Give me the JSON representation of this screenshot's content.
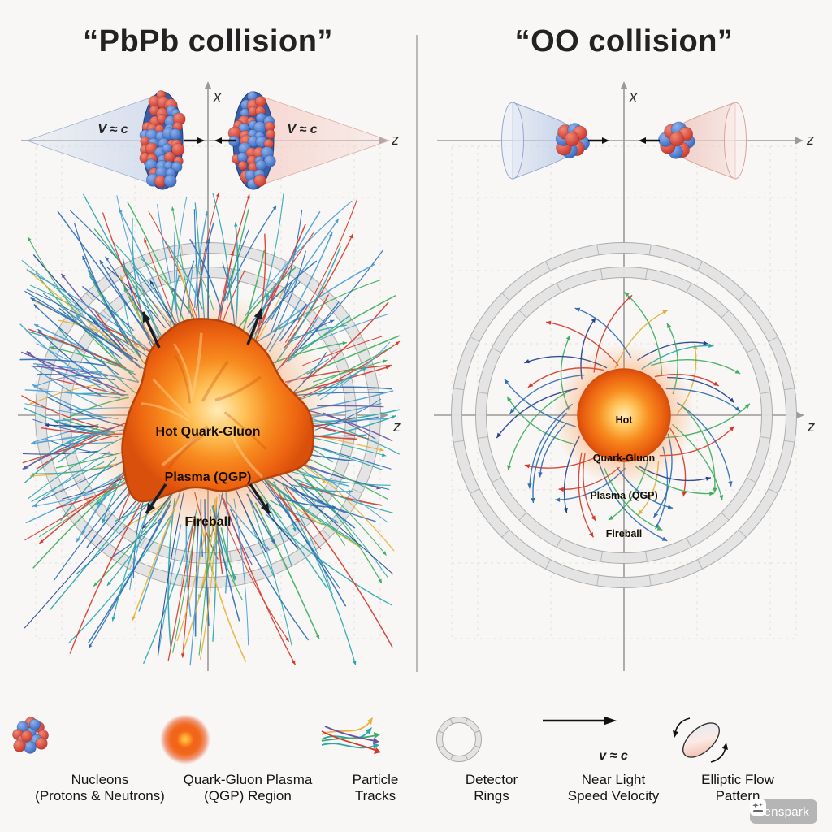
{
  "left_panel": {
    "title": "“PbPb collision”",
    "beam_label_left": "V ≈ c",
    "beam_label_right": "V ≈ c",
    "axis": {
      "x": "x",
      "z_top": "z",
      "z_main": "z"
    },
    "fireball_lines": [
      "Hot Quark-Gluon",
      "Plasma (QGP)",
      "Fireball"
    ]
  },
  "right_panel": {
    "title": "“OO collision”",
    "axis": {
      "x": "x",
      "z_top": "z",
      "z_main": "z"
    },
    "fireball_lines": [
      "Hot",
      "Quark-Gluon",
      "Plasma (QGP)",
      "Fireball"
    ]
  },
  "legend": {
    "items": [
      {
        "icon": "nucleons-icon",
        "lines": [
          "Nucleons",
          "(Protons & Neutrons)"
        ]
      },
      {
        "icon": "qgp-icon",
        "lines": [
          "Quark-Gluon Plasma",
          "(QGP) Region"
        ]
      },
      {
        "icon": "particle-tracks-icon",
        "lines": [
          "Particle",
          "Tracks"
        ]
      },
      {
        "icon": "detector-rings-icon",
        "lines": [
          "Detector",
          "Rings"
        ]
      },
      {
        "icon": "velocity-icon",
        "velocity_label": "v ≈ c",
        "lines": [
          "Near Light",
          "Speed Velocity"
        ]
      },
      {
        "icon": "elliptic-flow-icon",
        "lines": [
          "Elliptic Flow",
          "Pattern"
        ]
      }
    ]
  },
  "watermark": {
    "text": "Genspark"
  },
  "art": {
    "background": "#f8f7f5",
    "divider_color": "#b8b8b8",
    "axis_color": "#9a9a9a",
    "grid_color": "#e2dfda",
    "black_arrow_color": "#1b1b24",
    "ring_fill": "#e4e4e4",
    "ring_edge": "#a9a9a9",
    "cone_blue": "#cdd8ec",
    "cone_blue_edge": "#93a9cf",
    "cone_red": "#f5cfc8",
    "cone_red_edge": "#d9a39b",
    "sphere_blue": [
      "#8fb2ec",
      "#2a5cb8"
    ],
    "sphere_red": [
      "#f08a76",
      "#c5271d"
    ],
    "fireball_core": [
      "#ffecb8",
      "#ffc258",
      "#f78c1f",
      "#ee6611",
      "#d94f0c"
    ],
    "fireball_rim": "#b8430a",
    "left_tracks": {
      "count": 320,
      "seed": 20250,
      "arrow_prob": 0.3,
      "palette": [
        "#2e6fb5",
        "#4a9fd4",
        "#2aa7ac",
        "#3fae62",
        "#d6392c",
        "#e8b33b",
        "#6c52a2",
        "#24418f"
      ],
      "weights": [
        0.24,
        0.14,
        0.2,
        0.13,
        0.12,
        0.08,
        0.04,
        0.05
      ]
    },
    "right_tracks": {
      "count": 46,
      "seed": 77,
      "palette": [
        "#d6392c",
        "#2e6fb5",
        "#3fae62",
        "#24418f",
        "#e0b23a",
        "#2aa7ac"
      ],
      "weights": [
        0.24,
        0.26,
        0.2,
        0.12,
        0.1,
        0.08
      ]
    }
  }
}
